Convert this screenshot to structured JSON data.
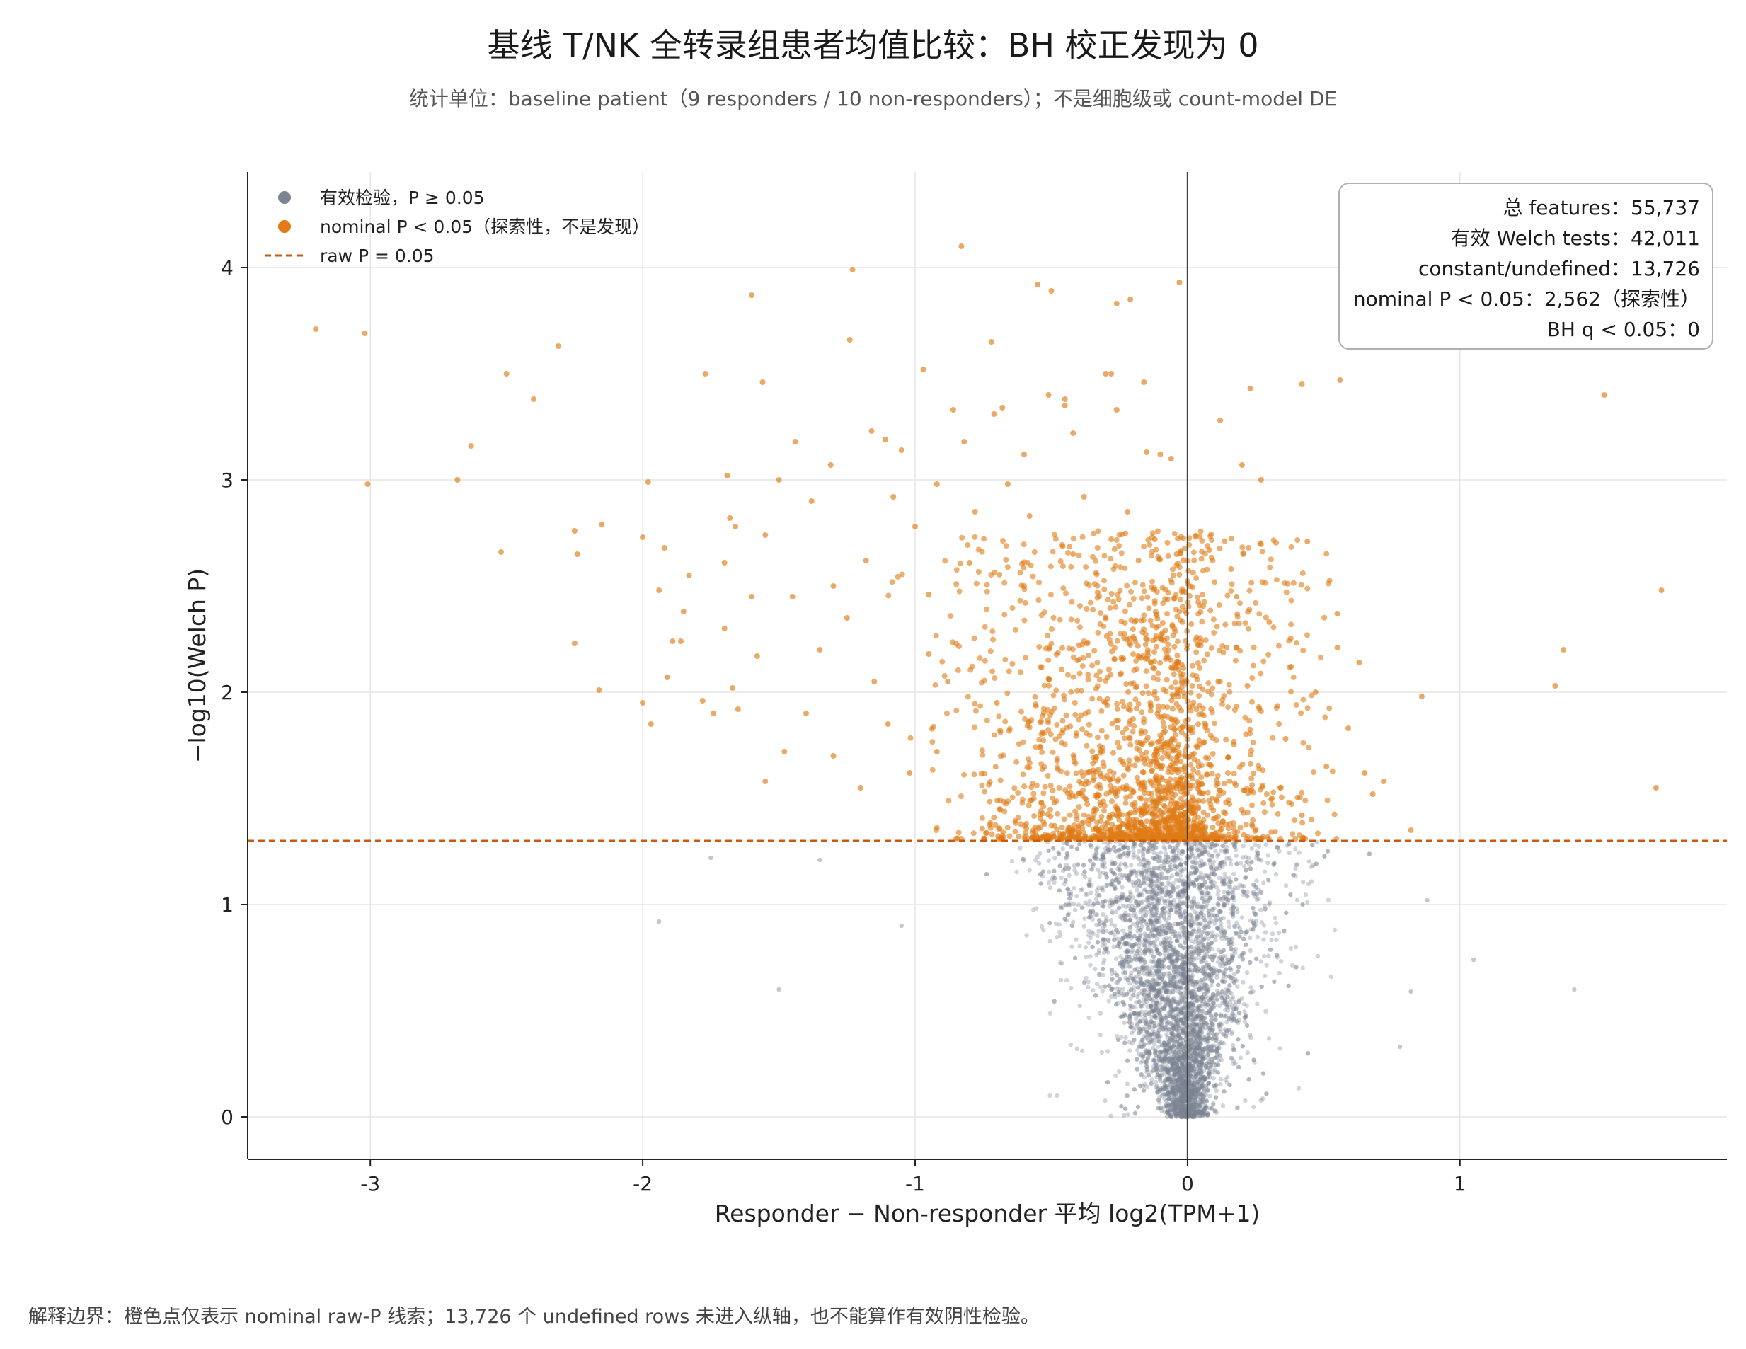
{
  "title": "基线 T/NK 全转录组患者均值比较：BH 校正发现为 0",
  "subtitle": "统计单位：baseline patient（9 responders / 10 non-responders）；不是细胞级或 count-model DE",
  "footnote": "解释边界：橙色点仅表示 nominal raw-P 线索；13,726 个 undefined rows 未进入纵轴，也不能算作有效阴性检验。",
  "chart_data": {
    "type": "scatter",
    "xlabel": "Responder − Non-responder 平均 log2(TPM+1)",
    "ylabel": "−log10(Welch P)",
    "xlim": [
      -3.45,
      1.98
    ],
    "ylim": [
      -0.2,
      4.45
    ],
    "xticks": [
      -3,
      -2,
      -1,
      0,
      1
    ],
    "yticks": [
      0,
      1,
      2,
      3,
      4
    ],
    "grid": true,
    "threshold_y": 1.301,
    "vline_x": 0,
    "legend_position": "top-left",
    "colors": {
      "ns": "#7a8591",
      "sig": "#e07b16",
      "threshold": "#c85a12",
      "vline": "#444444"
    },
    "legend": [
      {
        "label": "有效检验，P ≥ 0.05",
        "kind": "dot",
        "color": "#7a8591"
      },
      {
        "label": "nominal P < 0.05（探索性，不是发现）",
        "kind": "dot",
        "color": "#e07b16"
      },
      {
        "label": "raw P = 0.05",
        "kind": "dashed-line",
        "color": "#c85a12"
      }
    ],
    "stats_box": [
      "总 features：55,737",
      "有效 Welch tests：42,011",
      "constant/undefined：13,726",
      "nominal P < 0.05：2,562（探索性）",
      "BH q < 0.05：0"
    ],
    "series": [
      {
        "name": "nominal P < 0.05（探索性，不是发现）",
        "color": "#e07b16",
        "points": [
          [
            -3.2,
            3.71
          ],
          [
            -3.02,
            3.69
          ],
          [
            -3.01,
            2.98
          ],
          [
            -2.31,
            3.63
          ],
          [
            -2.5,
            3.5
          ],
          [
            -2.4,
            3.38
          ],
          [
            -2.63,
            3.16
          ],
          [
            -2.68,
            3.0
          ],
          [
            -2.52,
            2.66
          ],
          [
            -2.25,
            2.76
          ],
          [
            -2.24,
            2.65
          ],
          [
            -2.15,
            2.79
          ],
          [
            -2.25,
            2.23
          ],
          [
            -2.16,
            2.01
          ],
          [
            -2.0,
            2.73
          ],
          [
            -1.98,
            2.99
          ],
          [
            -1.92,
            2.68
          ],
          [
            -1.94,
            2.48
          ],
          [
            -1.89,
            2.24
          ],
          [
            -1.86,
            2.24
          ],
          [
            -1.91,
            2.07
          ],
          [
            -2.0,
            1.95
          ],
          [
            -1.97,
            1.85
          ],
          [
            -1.85,
            2.38
          ],
          [
            -1.83,
            2.55
          ],
          [
            -1.78,
            1.96
          ],
          [
            -1.74,
            1.9
          ],
          [
            -1.7,
            2.3
          ],
          [
            -1.69,
            3.02
          ],
          [
            -1.68,
            2.82
          ],
          [
            -1.66,
            2.78
          ],
          [
            -1.7,
            2.61
          ],
          [
            -1.67,
            2.02
          ],
          [
            -1.65,
            1.92
          ],
          [
            -1.6,
            2.45
          ],
          [
            -1.58,
            2.17
          ],
          [
            -1.55,
            2.74
          ],
          [
            -1.5,
            3.0
          ],
          [
            -1.56,
            3.46
          ],
          [
            -1.6,
            3.87
          ],
          [
            -1.77,
            3.5
          ],
          [
            -1.44,
            3.18
          ],
          [
            -1.31,
            3.07
          ],
          [
            -1.23,
            3.99
          ],
          [
            -1.24,
            3.66
          ],
          [
            -1.16,
            3.23
          ],
          [
            -1.11,
            3.19
          ],
          [
            -1.05,
            3.14
          ],
          [
            -0.97,
            3.52
          ],
          [
            -0.83,
            4.1
          ],
          [
            -0.86,
            3.33
          ],
          [
            -0.72,
            3.65
          ],
          [
            -0.68,
            3.34
          ],
          [
            -0.71,
            3.31
          ],
          [
            -0.55,
            3.92
          ],
          [
            -0.5,
            3.89
          ],
          [
            -0.51,
            3.4
          ],
          [
            -0.45,
            3.38
          ],
          [
            -0.45,
            3.35
          ],
          [
            -0.3,
            3.5
          ],
          [
            -0.28,
            3.5
          ],
          [
            -0.26,
            3.83
          ],
          [
            -0.21,
            3.85
          ],
          [
            -0.03,
            3.93
          ],
          [
            -0.16,
            3.46
          ],
          [
            -0.26,
            3.33
          ],
          [
            -0.15,
            3.13
          ],
          [
            -0.1,
            3.12
          ],
          [
            -0.06,
            3.1
          ],
          [
            0.23,
            3.43
          ],
          [
            0.12,
            3.28
          ],
          [
            0.42,
            3.45
          ],
          [
            0.56,
            3.47
          ],
          [
            0.2,
            3.07
          ],
          [
            0.27,
            3.0
          ],
          [
            1.53,
            3.4
          ],
          [
            1.74,
            2.48
          ],
          [
            1.38,
            2.2
          ],
          [
            1.35,
            2.03
          ],
          [
            0.86,
            1.98
          ],
          [
            1.72,
            1.55
          ],
          [
            0.44,
            2.71
          ],
          [
            0.55,
            2.37
          ],
          [
            0.63,
            2.14
          ],
          [
            0.55,
            2.21
          ],
          [
            0.72,
            1.58
          ],
          [
            0.68,
            1.52
          ],
          [
            0.82,
            1.35
          ],
          [
            0.65,
            1.62
          ],
          [
            0.59,
            1.83
          ],
          [
            -0.95,
            2.46
          ],
          [
            -0.8,
            2.61
          ],
          [
            -0.6,
            2.5
          ],
          [
            -0.42,
            2.65
          ],
          [
            -0.33,
            2.47
          ],
          [
            -0.18,
            2.62
          ],
          [
            -0.12,
            2.72
          ],
          [
            -0.04,
            2.65
          ],
          [
            0.08,
            2.67
          ],
          [
            0.16,
            2.58
          ],
          [
            -1.35,
            2.2
          ],
          [
            -1.25,
            2.35
          ],
          [
            -1.15,
            2.05
          ],
          [
            -1.4,
            1.9
          ],
          [
            -1.3,
            1.7
          ],
          [
            -1.48,
            1.72
          ],
          [
            -1.55,
            1.58
          ],
          [
            -1.2,
            1.55
          ],
          [
            -1.1,
            1.85
          ],
          [
            -1.45,
            2.45
          ],
          [
            -1.3,
            2.5
          ],
          [
            -1.18,
            2.62
          ],
          [
            -1.38,
            2.9
          ],
          [
            -1.08,
            2.92
          ],
          [
            -1.0,
            2.78
          ],
          [
            -0.92,
            2.98
          ],
          [
            -0.78,
            2.85
          ],
          [
            -0.66,
            2.98
          ],
          [
            -0.58,
            2.83
          ],
          [
            -0.38,
            2.92
          ],
          [
            -0.28,
            2.72
          ],
          [
            -0.22,
            2.85
          ],
          [
            -0.42,
            3.22
          ],
          [
            -0.6,
            3.12
          ],
          [
            -0.82,
            3.18
          ],
          [
            -0.95,
            2.18
          ],
          [
            -0.88,
            2.05
          ],
          [
            -0.7,
            1.95
          ],
          [
            -0.92,
            1.72
          ],
          [
            -1.02,
            1.62
          ],
          [
            0.3,
            2.33
          ],
          [
            0.38,
            2.12
          ],
          [
            0.47,
            2.0
          ],
          [
            0.34,
            1.55
          ],
          [
            0.42,
            1.42
          ],
          [
            0.51,
            1.65
          ],
          [
            0.27,
            1.91
          ],
          [
            0.36,
            1.78
          ],
          [
            0.22,
            2.03
          ],
          [
            0.18,
            2.45
          ]
        ]
      }
    ],
    "generated_distributions_note": "",
    "ns_cloud_count": 42011
  }
}
